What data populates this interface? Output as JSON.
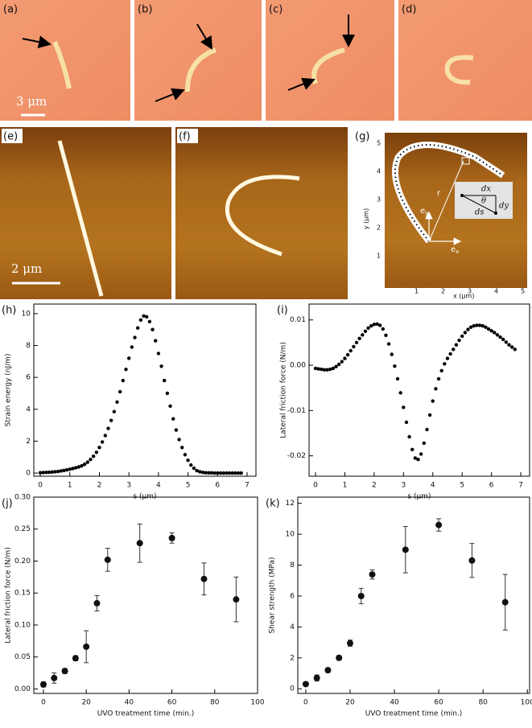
{
  "image_panels": {
    "a": {
      "label": "(a)",
      "scale_bar": "3 μm"
    },
    "b": {
      "label": "(b)"
    },
    "c": {
      "label": "(c)"
    },
    "d": {
      "label": "(d)"
    },
    "e": {
      "label": "(e)",
      "scale_bar": "2 μm"
    },
    "f": {
      "label": "(f)"
    },
    "g": {
      "label": "(g)",
      "xlabel": "x (μm)",
      "ylabel": "y (μm)",
      "x_tick_labels": [
        "1",
        "2",
        "3",
        "4",
        "5"
      ],
      "y_tick_labels": [
        "1",
        "2",
        "3",
        "4",
        "5"
      ],
      "r": "r",
      "ex_base": "e",
      "ex_sub": "x",
      "ey_base": "e",
      "ey_sub": "y",
      "dx": "dx",
      "dy": "dy",
      "ds": "ds",
      "theta": "θ"
    }
  },
  "chart_data": [
    {
      "type": "scatter",
      "panel_label": "(h)",
      "xlabel": "s (μm)",
      "ylabel": "Strain energy (nJ/m)",
      "x": [
        0,
        0.1,
        0.2,
        0.3,
        0.4,
        0.5,
        0.6,
        0.7,
        0.8,
        0.9,
        1.0,
        1.1,
        1.2,
        1.3,
        1.4,
        1.5,
        1.6,
        1.7,
        1.8,
        1.9,
        2.0,
        2.1,
        2.2,
        2.3,
        2.4,
        2.5,
        2.6,
        2.7,
        2.8,
        2.9,
        3.0,
        3.1,
        3.2,
        3.3,
        3.4,
        3.5,
        3.6,
        3.7,
        3.8,
        3.9,
        4.0,
        4.1,
        4.2,
        4.3,
        4.4,
        4.5,
        4.6,
        4.7,
        4.8,
        4.9,
        5.0,
        5.1,
        5.2,
        5.3,
        5.4,
        5.5,
        5.6,
        5.7,
        5.8,
        5.9,
        6.0,
        6.1,
        6.2,
        6.3,
        6.4,
        6.5,
        6.6,
        6.7,
        6.8
      ],
      "series": [
        {
          "color": "#000000",
          "values": [
            0.02,
            0.03,
            0.04,
            0.05,
            0.06,
            0.08,
            0.1,
            0.13,
            0.16,
            0.2,
            0.24,
            0.28,
            0.33,
            0.38,
            0.45,
            0.55,
            0.68,
            0.85,
            1.05,
            1.3,
            1.6,
            1.95,
            2.35,
            2.8,
            3.3,
            3.85,
            4.45,
            5.1,
            5.8,
            6.5,
            7.2,
            7.9,
            8.5,
            9.1,
            9.6,
            9.85,
            9.8,
            9.5,
            9.0,
            8.3,
            7.5,
            6.7,
            5.8,
            5.0,
            4.2,
            3.4,
            2.7,
            2.1,
            1.6,
            1.15,
            0.8,
            0.5,
            0.3,
            0.15,
            0.08,
            0.04,
            0.02,
            0.01,
            0.01,
            0,
            0,
            0,
            0,
            0,
            0,
            0,
            0,
            0,
            0
          ]
        }
      ],
      "xlim": [
        -0.22,
        7.3
      ],
      "ylim": [
        -0.2,
        10.6
      ],
      "xticks": [
        0,
        1,
        2,
        3,
        4,
        5,
        6,
        7
      ],
      "yticks": [
        0,
        2,
        4,
        6,
        8,
        10
      ]
    },
    {
      "type": "scatter",
      "panel_label": "(i)",
      "xlabel": "s (μm)",
      "ylabel": "Lateral friction force (N/m)",
      "x": [
        0,
        0.1,
        0.2,
        0.3,
        0.4,
        0.5,
        0.6,
        0.7,
        0.8,
        0.9,
        1.0,
        1.1,
        1.2,
        1.3,
        1.4,
        1.5,
        1.6,
        1.7,
        1.8,
        1.9,
        2.0,
        2.1,
        2.2,
        2.3,
        2.4,
        2.5,
        2.6,
        2.7,
        2.8,
        2.9,
        3.0,
        3.1,
        3.2,
        3.3,
        3.4,
        3.5,
        3.6,
        3.7,
        3.8,
        3.9,
        4.0,
        4.1,
        4.2,
        4.3,
        4.4,
        4.5,
        4.6,
        4.7,
        4.8,
        4.9,
        5.0,
        5.1,
        5.2,
        5.3,
        5.4,
        5.5,
        5.6,
        5.7,
        5.8,
        5.9,
        6.0,
        6.1,
        6.2,
        6.3,
        6.4,
        6.5,
        6.6,
        6.7,
        6.8
      ],
      "series": [
        {
          "color": "#000000",
          "values": [
            -0.0007,
            -0.0008,
            -0.0009,
            -0.001,
            -0.001,
            -0.0009,
            -0.0007,
            -0.0003,
            0.0002,
            0.0008,
            0.0015,
            0.0023,
            0.0032,
            0.0041,
            0.005,
            0.0059,
            0.0067,
            0.0075,
            0.0082,
            0.0087,
            0.009,
            0.0091,
            0.0088,
            0.008,
            0.0066,
            0.0047,
            0.0024,
            -0.0002,
            -0.003,
            -0.0061,
            -0.0093,
            -0.0126,
            -0.0158,
            -0.0186,
            -0.0205,
            -0.0208,
            -0.0196,
            -0.0172,
            -0.0142,
            -0.011,
            -0.0079,
            -0.0052,
            -0.003,
            -0.0012,
            0.0003,
            0.0015,
            0.0025,
            0.0035,
            0.0045,
            0.0055,
            0.0064,
            0.0072,
            0.0079,
            0.0084,
            0.0087,
            0.0088,
            0.0088,
            0.0087,
            0.0084,
            0.008,
            0.0076,
            0.0072,
            0.0067,
            0.0062,
            0.0057,
            0.0051,
            0.0045,
            0.004,
            0.0035
          ]
        }
      ],
      "xlim": [
        -0.22,
        7.3
      ],
      "ylim": [
        -0.0245,
        0.0135
      ],
      "xticks": [
        0,
        1,
        2,
        3,
        4,
        5,
        6,
        7
      ],
      "yticks": [
        -0.02,
        -0.01,
        {
          "value": 0,
          "label": "0.00"
        },
        0.01
      ]
    },
    {
      "type": "scatter",
      "panel_label": "(j)",
      "xlabel": "UVO treatment time (min.)",
      "ylabel": "Lateral friction force (N/m)",
      "x": [
        0,
        5,
        10,
        15,
        20,
        25,
        30,
        45,
        60,
        75,
        90
      ],
      "series": [
        {
          "color": "#111111",
          "values": [
            0.007,
            0.017,
            0.028,
            0.048,
            0.066,
            0.134,
            0.202,
            0.228,
            0.236,
            0.172,
            0.14
          ],
          "errors": [
            0.004,
            0.008,
            0.004,
            0.004,
            0.025,
            0.012,
            0.018,
            0.03,
            0.008,
            0.025,
            0.035
          ]
        }
      ],
      "xlim": [
        -4.5,
        100
      ],
      "ylim": [
        -0.007,
        0.3
      ],
      "xticks": [
        0,
        20,
        40,
        60,
        80,
        100
      ],
      "yticks": [
        {
          "value": 0,
          "label": "0.00"
        },
        0.05,
        {
          "value": 0.1,
          "label": "0.10"
        },
        0.15,
        {
          "value": 0.2,
          "label": "0.20"
        },
        0.25,
        {
          "value": 0.3,
          "label": "0.30"
        }
      ]
    },
    {
      "type": "scatter",
      "panel_label": "(k)",
      "xlabel": "UVO treatment time (min.)",
      "ylabel": "Shear strength (MPa)",
      "x": [
        0,
        5,
        10,
        15,
        20,
        25,
        30,
        45,
        60,
        75,
        90
      ],
      "series": [
        {
          "color": "#111111",
          "values": [
            0.3,
            0.7,
            1.2,
            2.0,
            2.95,
            6.0,
            7.4,
            9.0,
            10.6,
            8.3,
            5.6
          ],
          "errors": [
            0.1,
            0.2,
            0.15,
            0.15,
            0.2,
            0.5,
            0.3,
            1.5,
            0.4,
            1.1,
            1.8
          ]
        }
      ],
      "xlim": [
        -3.6,
        101
      ],
      "ylim": [
        -0.3,
        12.4
      ],
      "xticks": [
        0,
        20,
        40,
        60,
        80,
        100
      ],
      "yticks": [
        0,
        2,
        4,
        6,
        8,
        10,
        12
      ]
    }
  ]
}
